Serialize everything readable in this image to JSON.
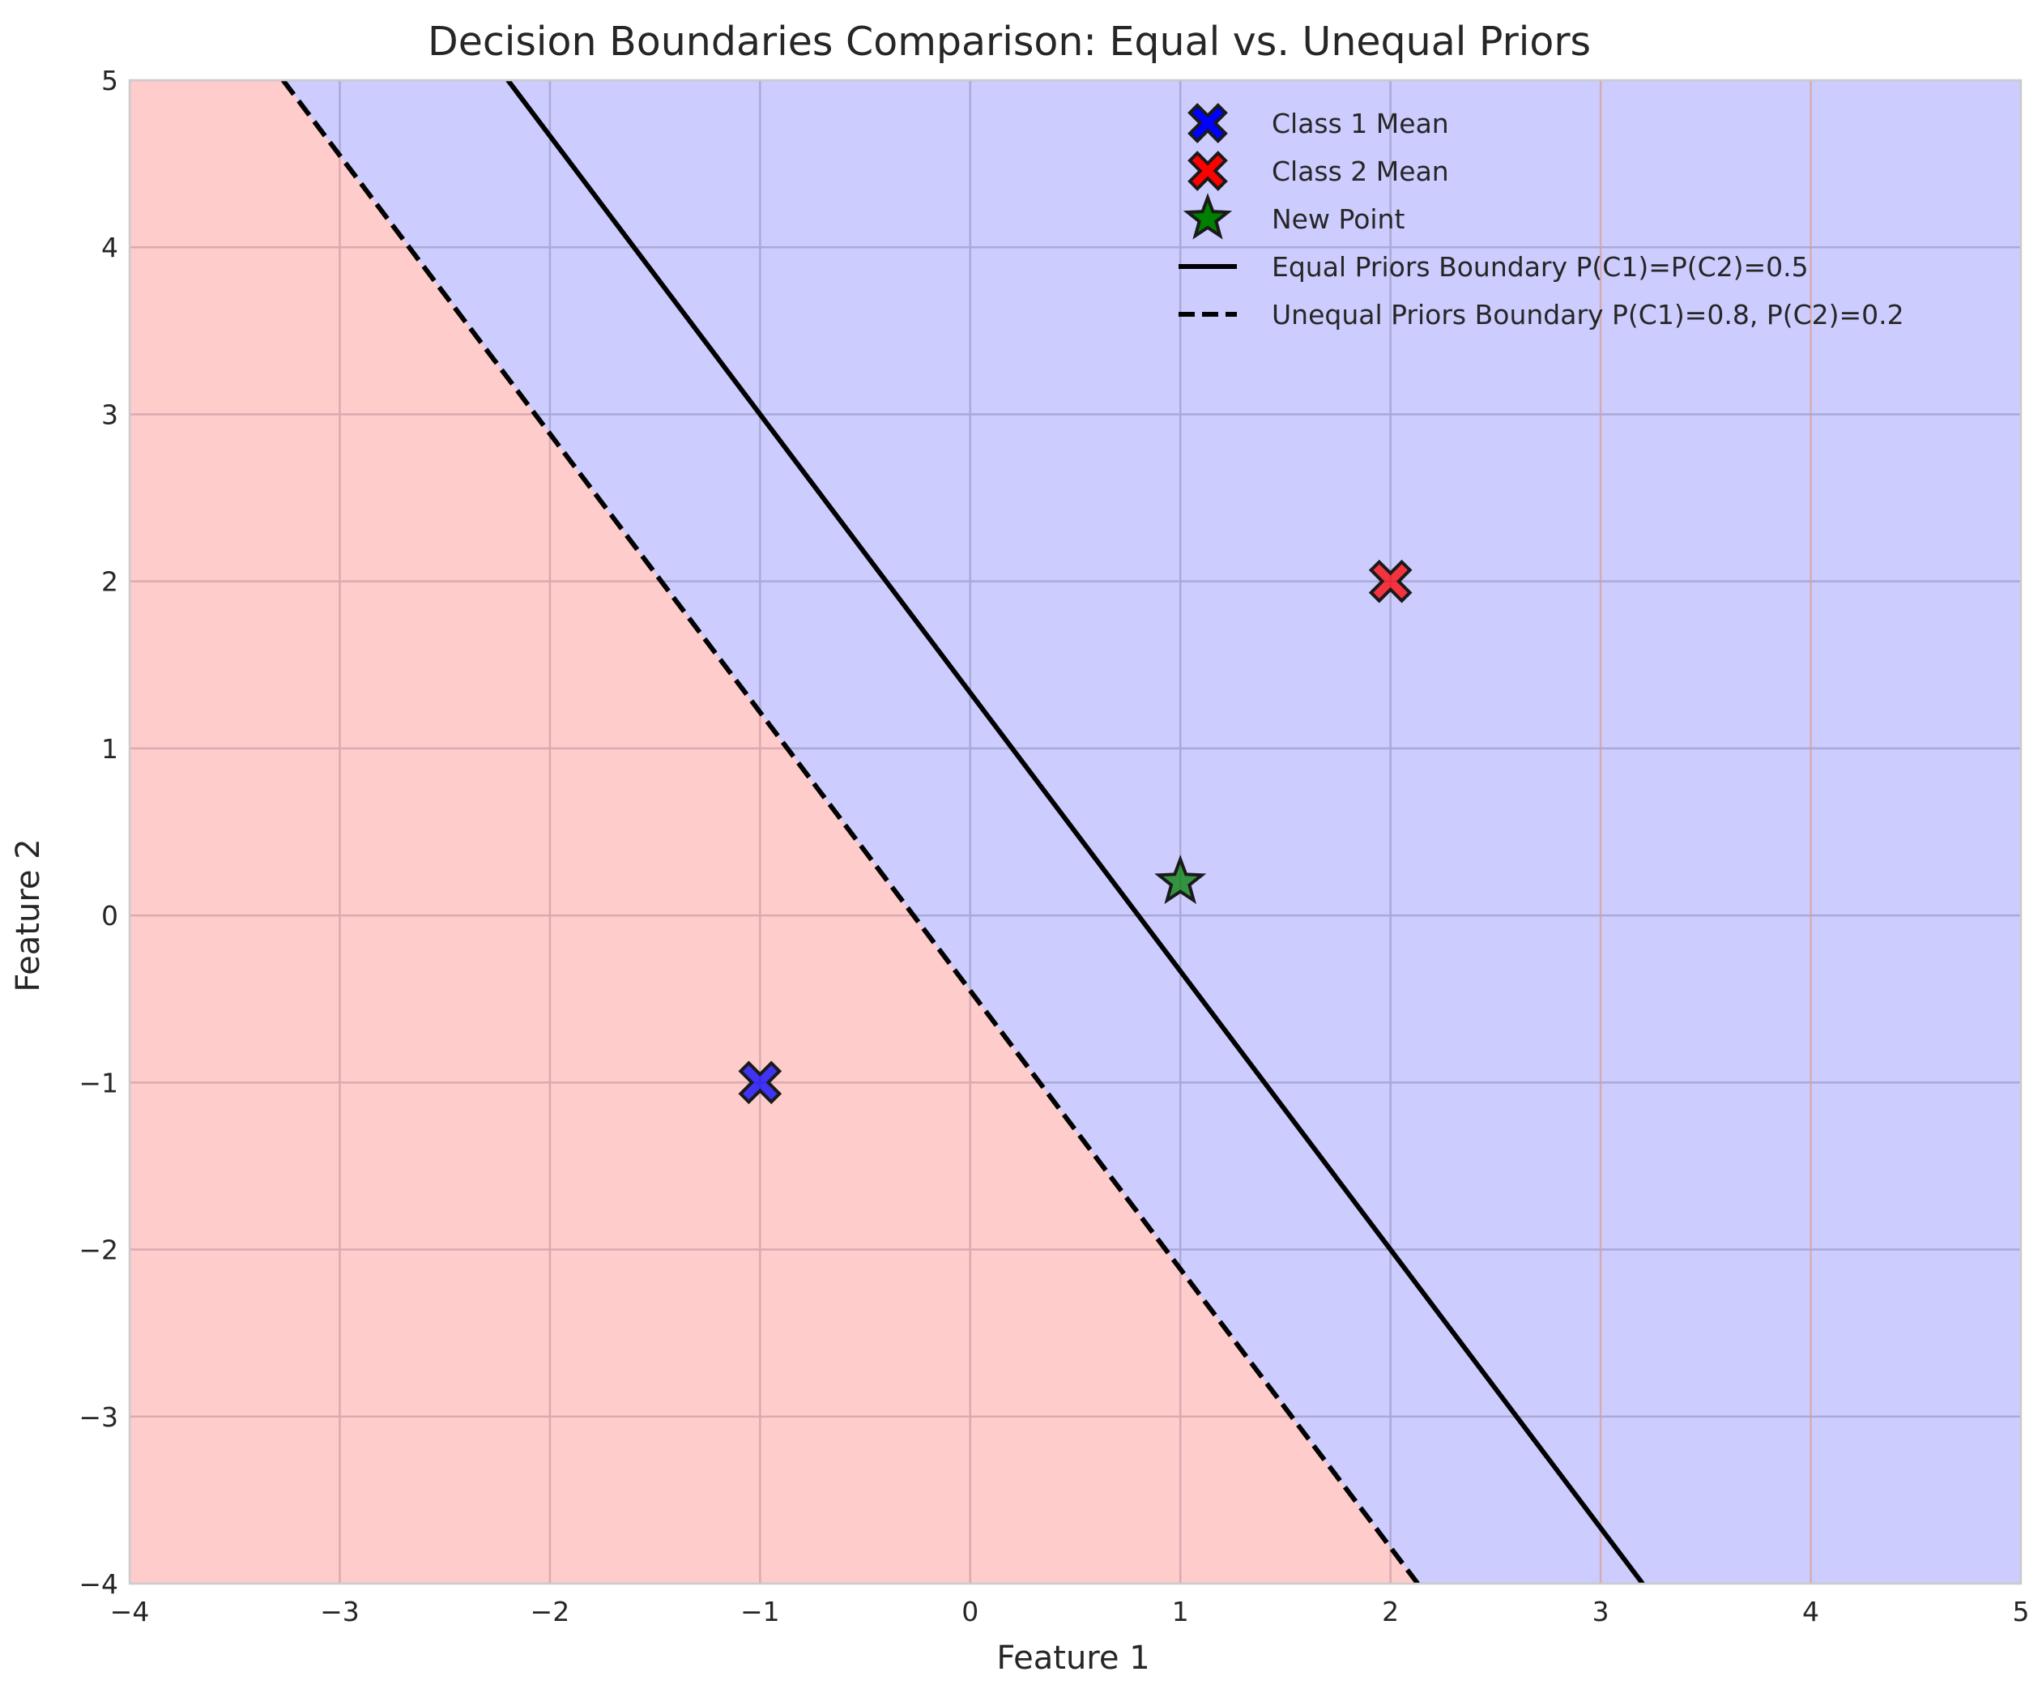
{
  "chart_data": {
    "type": "scatter",
    "title": "Decision Boundaries Comparison: Equal vs. Unequal Priors",
    "xlabel": "Feature 1",
    "ylabel": "Feature 2",
    "xlim": [
      -4,
      5
    ],
    "ylim": [
      -4,
      5
    ],
    "x_ticks": [
      -4,
      -3,
      -2,
      -1,
      0,
      1,
      2,
      3,
      4,
      5
    ],
    "y_ticks": [
      -4,
      -3,
      -2,
      -1,
      0,
      1,
      2,
      3,
      4,
      5
    ],
    "x_tick_labels": [
      "−4",
      "−3",
      "−2",
      "−1",
      "0",
      "1",
      "2",
      "3",
      "4",
      "5"
    ],
    "y_tick_labels": [
      "−4",
      "−3",
      "−2",
      "−1",
      "0",
      "1",
      "2",
      "3",
      "4",
      "5"
    ],
    "grid": true,
    "legend_position": "top-right",
    "regions": {
      "class2_color": "#ffcccc",
      "class1_color": "#ccccff",
      "grid_on_class2": "#d9aab0",
      "grid_on_class1": "#aaaad6"
    },
    "points": [
      {
        "name": "Class 1 Mean",
        "x": -1,
        "y": -1,
        "marker": "X",
        "color": "#0000ff"
      },
      {
        "name": "Class 2 Mean",
        "x": 2,
        "y": 2,
        "marker": "X",
        "color": "#ff0000"
      },
      {
        "name": "New Point",
        "x": 1,
        "y": 0.2,
        "marker": "star",
        "color": "#008000"
      }
    ],
    "boundaries": [
      {
        "name": "Equal Priors Boundary P(C1)=P(C2)=0.5",
        "style": "solid",
        "color": "#000000",
        "x": [
          -2.2,
          3.2
        ],
        "y": [
          5,
          -4
        ]
      },
      {
        "name": "Unequal Priors Boundary P(C1)=0.8, P(C2)=0.2",
        "style": "dashed",
        "color": "#000000",
        "x": [
          -3.27,
          2.13
        ],
        "y": [
          5,
          -4
        ]
      }
    ],
    "legend": [
      {
        "label": "Class 1 Mean",
        "kind": "X",
        "color": "#0000ff"
      },
      {
        "label": "Class 2 Mean",
        "kind": "X",
        "color": "#ff0000"
      },
      {
        "label": "New Point",
        "kind": "star",
        "color": "#008000"
      },
      {
        "label": "Equal Priors Boundary P(C1)=P(C2)=0.5",
        "kind": "solid",
        "color": "#000000"
      },
      {
        "label": "Unequal Priors Boundary P(C1)=0.8, P(C2)=0.2",
        "kind": "dashed",
        "color": "#000000"
      }
    ]
  }
}
